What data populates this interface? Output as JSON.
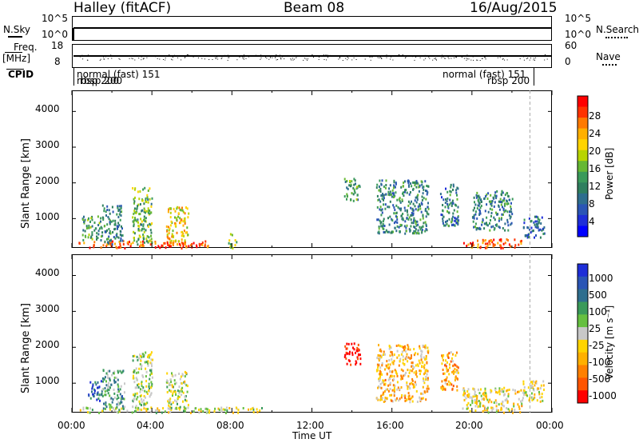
{
  "header": {
    "station": "Halley (fitACF)",
    "beam": "Beam 08",
    "date": "16/Aug/2015"
  },
  "strip_labels": {
    "nsky": "N.Sky",
    "nsky_top": "10^5",
    "nsky_bottom": "10^0",
    "nsearch": "N.Search",
    "nsearch_top": "10^5",
    "nsearch_bottom": "10^0",
    "freq": "Freq.",
    "freq_unit": "[MHz]",
    "freq_top": "18",
    "freq_bottom": "8",
    "nave": "Nave",
    "nave_top": "60",
    "nave_bottom": "0",
    "cpid": "CPID",
    "cpid_left_name": "normal (fast)  151",
    "cpid_left_sub": "rbsp 200",
    "cpid_left_sub2": "rbsp 200",
    "cpid_right_name": "normal (fast)  151",
    "cpid_right_sub": "rbsp 200"
  },
  "colorbars": {
    "power": {
      "label": "Power [dB]",
      "ticks": [
        "28",
        "24",
        "20",
        "16",
        "12",
        "8",
        "4"
      ],
      "colors": [
        "#ff0000",
        "#ff3300",
        "#ff7a00",
        "#ffb000",
        "#ffd400",
        "#b8d400",
        "#66b833",
        "#3a9a5a",
        "#2f7f5f",
        "#2e6e8e",
        "#2a55b5",
        "#1e2ed8",
        "#0000ff"
      ]
    },
    "velocity": {
      "label": "Velocity [m s⁻¹]",
      "ticks": [
        "1000",
        "500",
        "100",
        "25",
        "-25",
        "-100",
        "-500",
        "-1000"
      ],
      "colors": [
        "#1e2ed8",
        "#2a55b5",
        "#2e6e8e",
        "#3a9a5a",
        "#66c040",
        "#c8c8c8",
        "#ffd400",
        "#ffb000",
        "#ff8000",
        "#ff5500",
        "#ff0000"
      ]
    }
  },
  "axes": {
    "ylabel": "Slant Range [km]",
    "xlabel": "Time UT",
    "yticks": [
      "4000",
      "3000",
      "2000",
      "1000"
    ],
    "xticks": [
      "00:00",
      "04:00",
      "08:00",
      "12:00",
      "16:00",
      "20:00",
      "00:00"
    ]
  },
  "chart_data": [
    {
      "type": "heatmap",
      "title": "",
      "xlabel": "Time UT",
      "ylabel": "Slant Range [km]",
      "xlim_hours": [
        0,
        24
      ],
      "ylim_km": [
        180,
        4590
      ],
      "colorbar_label": "Power [dB]",
      "colorbar_range": [
        0,
        30
      ],
      "echo_regions": [
        {
          "t_start": 0.3,
          "t_end": 6.8,
          "r_min": 200,
          "r_max": 400,
          "value": 26
        },
        {
          "t_start": 0.5,
          "t_end": 1.5,
          "r_min": 400,
          "r_max": 1100,
          "value": 12
        },
        {
          "t_start": 1.5,
          "t_end": 2.5,
          "r_min": 300,
          "r_max": 1400,
          "value": 10
        },
        {
          "t_start": 3.0,
          "t_end": 4.0,
          "r_min": 300,
          "r_max": 1900,
          "value": 14
        },
        {
          "t_start": 4.7,
          "t_end": 5.8,
          "r_min": 300,
          "r_max": 1350,
          "value": 20
        },
        {
          "t_start": 7.8,
          "t_end": 8.2,
          "r_min": 200,
          "r_max": 600,
          "value": 16
        },
        {
          "t_start": 13.6,
          "t_end": 14.4,
          "r_min": 1500,
          "r_max": 2150,
          "value": 12
        },
        {
          "t_start": 15.2,
          "t_end": 17.8,
          "r_min": 600,
          "r_max": 2100,
          "value": 10
        },
        {
          "t_start": 18.4,
          "t_end": 19.3,
          "r_min": 800,
          "r_max": 2000,
          "value": 9
        },
        {
          "t_start": 19.5,
          "t_end": 22.5,
          "r_min": 200,
          "r_max": 450,
          "value": 26
        },
        {
          "t_start": 20.0,
          "t_end": 22.0,
          "r_min": 700,
          "r_max": 1800,
          "value": 10
        },
        {
          "t_start": 22.5,
          "t_end": 23.6,
          "r_min": 500,
          "r_max": 1100,
          "value": 8
        }
      ]
    },
    {
      "type": "heatmap",
      "title": "",
      "xlabel": "Time UT",
      "ylabel": "Slant Range [km]",
      "xlim_hours": [
        0,
        24
      ],
      "ylim_km": [
        180,
        4590
      ],
      "colorbar_label": "Velocity [m s⁻¹]",
      "colorbar_range": [
        -1000,
        1000
      ],
      "echo_regions": [
        {
          "t_start": 0.3,
          "t_end": 9.5,
          "r_min": 200,
          "r_max": 350,
          "value": 0
        },
        {
          "t_start": 0.8,
          "t_end": 1.5,
          "r_min": 500,
          "r_max": 1100,
          "value": 700
        },
        {
          "t_start": 1.5,
          "t_end": 2.6,
          "r_min": 300,
          "r_max": 1400,
          "value": 300
        },
        {
          "t_start": 3.0,
          "t_end": 4.0,
          "r_min": 300,
          "r_max": 1900,
          "value": 80
        },
        {
          "t_start": 4.7,
          "t_end": 5.8,
          "r_min": 300,
          "r_max": 1350,
          "value": 60
        },
        {
          "t_start": 13.6,
          "t_end": 14.4,
          "r_min": 1500,
          "r_max": 2150,
          "value": -1000
        },
        {
          "t_start": 15.2,
          "t_end": 17.8,
          "r_min": 500,
          "r_max": 2100,
          "value": -300
        },
        {
          "t_start": 18.4,
          "t_end": 19.3,
          "r_min": 800,
          "r_max": 1900,
          "value": -400
        },
        {
          "t_start": 19.5,
          "t_end": 22.5,
          "r_min": 200,
          "r_max": 900,
          "value": -150
        },
        {
          "t_start": 22.5,
          "t_end": 23.6,
          "r_min": 500,
          "r_max": 1100,
          "value": -80
        }
      ]
    }
  ]
}
